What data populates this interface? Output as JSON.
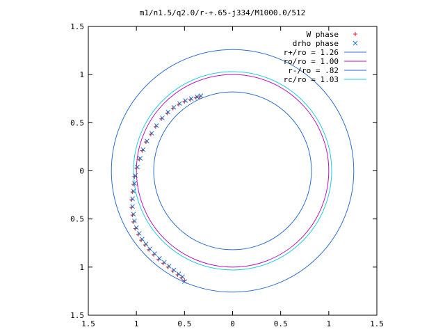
{
  "chart_data": {
    "type": "scatter",
    "title": "m1/n1.5/q2.0/r-+.65-j334/M1000.0/512",
    "xlabel": "",
    "ylabel": "",
    "xlim": [
      -1.5,
      1.5
    ],
    "ylim": [
      -1.5,
      1.5
    ],
    "x_ticks": [
      -1.5,
      -1,
      -0.5,
      0,
      0.5,
      1,
      1.5
    ],
    "x_tick_labels": [
      "1.5",
      "1",
      "0.5",
      "0",
      "0.5",
      "1",
      "1.5"
    ],
    "y_ticks": [
      1.5,
      1,
      0.5,
      0,
      -0.5,
      -1,
      -1.5
    ],
    "y_tick_labels": [
      "1.5",
      "1",
      "0.5",
      "0",
      "0.5",
      "1",
      "1.5"
    ],
    "grid": false,
    "legend_position": "top-right",
    "circles": [
      {
        "name": "r+/ro = 1.26",
        "radius": 1.26,
        "color": "#2a6ed1"
      },
      {
        "name": "ro/ro = 1.00",
        "radius": 1.0,
        "color": "#c010c0"
      },
      {
        "name": "r-/ro = .82",
        "radius": 0.82,
        "color": "#2a6ed1"
      },
      {
        "name": "rc/ro = 1.03",
        "radius": 1.03,
        "color": "#20d0d8"
      }
    ],
    "series": [
      {
        "name": "W phase",
        "marker": "+",
        "color": "#e02020",
        "x": [
          -0.34,
          -0.38,
          -0.44,
          -0.5,
          -0.56,
          -0.62,
          -0.68,
          -0.74,
          -0.8,
          -0.85,
          -0.9,
          -0.94,
          -0.97,
          -1.0,
          -1.02,
          -1.03,
          -1.04,
          -1.05,
          -1.05,
          -1.04,
          -1.03,
          -1.01,
          -0.98,
          -0.95,
          -0.91,
          -0.87,
          -0.82,
          -0.77,
          -0.72,
          -0.67,
          -0.62,
          -0.57,
          -0.53,
          -0.5
        ],
        "y": [
          0.77,
          0.76,
          0.74,
          0.72,
          0.69,
          0.65,
          0.6,
          0.54,
          0.46,
          0.38,
          0.3,
          0.21,
          0.12,
          0.03,
          -0.06,
          -0.14,
          -0.22,
          -0.3,
          -0.38,
          -0.46,
          -0.53,
          -0.6,
          -0.66,
          -0.72,
          -0.77,
          -0.82,
          -0.87,
          -0.92,
          -0.96,
          -1.0,
          -1.04,
          -1.08,
          -1.11,
          -1.14
        ]
      },
      {
        "name": "drho phase",
        "marker": "x",
        "color": "#1f78d1",
        "x": [
          -0.33,
          -0.37,
          -0.43,
          -0.49,
          -0.55,
          -0.61,
          -0.67,
          -0.73,
          -0.79,
          -0.84,
          -0.89,
          -0.93,
          -0.96,
          -0.99,
          -1.01,
          -1.02,
          -1.03,
          -1.04,
          -1.04,
          -1.03,
          -1.02,
          -1.0,
          -0.97,
          -0.94,
          -0.9,
          -0.86,
          -0.81,
          -0.76,
          -0.71,
          -0.66,
          -0.61,
          -0.56,
          -0.52,
          -0.5
        ],
        "y": [
          0.78,
          0.77,
          0.75,
          0.73,
          0.7,
          0.66,
          0.61,
          0.55,
          0.47,
          0.39,
          0.31,
          0.22,
          0.13,
          0.04,
          -0.05,
          -0.13,
          -0.21,
          -0.29,
          -0.37,
          -0.45,
          -0.52,
          -0.59,
          -0.65,
          -0.71,
          -0.76,
          -0.81,
          -0.86,
          -0.91,
          -0.95,
          -0.99,
          -1.03,
          -1.07,
          -1.1,
          -1.15
        ]
      }
    ]
  }
}
